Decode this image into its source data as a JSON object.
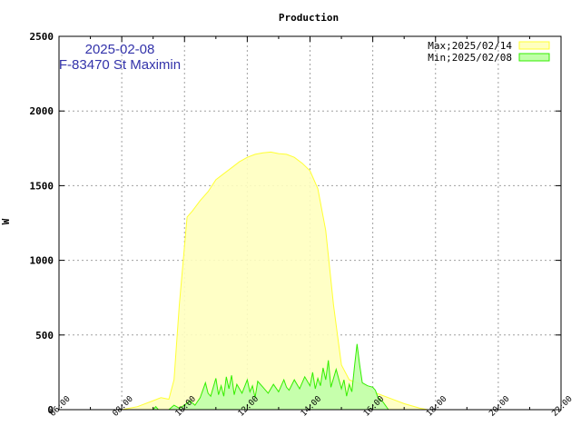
{
  "chart_data": {
    "type": "area",
    "title": "Production",
    "ylabel": "W",
    "annotation": {
      "date": "2025-02-08",
      "location": "F-83470 St Maximin"
    },
    "ylim": [
      0,
      2500
    ],
    "y_ticks": [
      0,
      500,
      1000,
      1500,
      2000,
      2500
    ],
    "xlim_hours": [
      6,
      22
    ],
    "x_ticks": [
      "06:00",
      "08:00",
      "10:00",
      "12:00",
      "14:00",
      "16:00",
      "18:00",
      "20:00",
      "22:00"
    ],
    "grid": true,
    "legend_position": "top-right",
    "series": [
      {
        "name": "Max;2025/02/14",
        "fill": "#ffffc0",
        "stroke": "#ffff33",
        "points": [
          [
            "08:00",
            0
          ],
          [
            "08:30",
            20
          ],
          [
            "09:00",
            60
          ],
          [
            "09:15",
            80
          ],
          [
            "09:30",
            70
          ],
          [
            "09:40",
            200
          ],
          [
            "09:50",
            700
          ],
          [
            "10:00",
            1100
          ],
          [
            "10:05",
            1290
          ],
          [
            "10:15",
            1330
          ],
          [
            "10:30",
            1400
          ],
          [
            "10:45",
            1460
          ],
          [
            "11:00",
            1540
          ],
          [
            "11:15",
            1580
          ],
          [
            "11:30",
            1620
          ],
          [
            "11:45",
            1660
          ],
          [
            "12:00",
            1690
          ],
          [
            "12:15",
            1710
          ],
          [
            "12:30",
            1720
          ],
          [
            "12:45",
            1725
          ],
          [
            "13:00",
            1715
          ],
          [
            "13:15",
            1710
          ],
          [
            "13:30",
            1690
          ],
          [
            "13:45",
            1650
          ],
          [
            "14:00",
            1600
          ],
          [
            "14:15",
            1480
          ],
          [
            "14:30",
            1200
          ],
          [
            "14:45",
            700
          ],
          [
            "15:00",
            300
          ],
          [
            "15:15",
            200
          ],
          [
            "15:30",
            180
          ],
          [
            "15:45",
            160
          ],
          [
            "16:00",
            120
          ],
          [
            "16:30",
            80
          ],
          [
            "17:00",
            40
          ],
          [
            "17:30",
            10
          ],
          [
            "17:45",
            0
          ]
        ]
      },
      {
        "name": "Min;2025/02/08",
        "fill": "#c0ffa8",
        "stroke": "#33ee00",
        "points": [
          [
            "09:00",
            0
          ],
          [
            "09:05",
            20
          ],
          [
            "09:10",
            0
          ],
          [
            "09:30",
            0
          ],
          [
            "09:40",
            30
          ],
          [
            "09:50",
            10
          ],
          [
            "10:00",
            30
          ],
          [
            "10:10",
            60
          ],
          [
            "10:20",
            30
          ],
          [
            "10:30",
            80
          ],
          [
            "10:40",
            180
          ],
          [
            "10:45",
            110
          ],
          [
            "10:50",
            90
          ],
          [
            "11:00",
            210
          ],
          [
            "11:05",
            100
          ],
          [
            "11:10",
            160
          ],
          [
            "11:15",
            90
          ],
          [
            "11:20",
            220
          ],
          [
            "11:25",
            140
          ],
          [
            "11:30",
            230
          ],
          [
            "11:35",
            100
          ],
          [
            "11:40",
            170
          ],
          [
            "11:50",
            110
          ],
          [
            "12:00",
            200
          ],
          [
            "12:05",
            120
          ],
          [
            "12:10",
            160
          ],
          [
            "12:15",
            80
          ],
          [
            "12:20",
            190
          ],
          [
            "12:30",
            150
          ],
          [
            "12:40",
            110
          ],
          [
            "12:50",
            170
          ],
          [
            "13:00",
            120
          ],
          [
            "13:10",
            200
          ],
          [
            "13:15",
            150
          ],
          [
            "13:20",
            130
          ],
          [
            "13:30",
            200
          ],
          [
            "13:40",
            140
          ],
          [
            "13:50",
            220
          ],
          [
            "14:00",
            160
          ],
          [
            "14:05",
            250
          ],
          [
            "14:10",
            140
          ],
          [
            "14:15",
            210
          ],
          [
            "14:20",
            160
          ],
          [
            "14:25",
            280
          ],
          [
            "14:30",
            200
          ],
          [
            "14:35",
            330
          ],
          [
            "14:40",
            150
          ],
          [
            "14:50",
            270
          ],
          [
            "15:00",
            140
          ],
          [
            "15:05",
            200
          ],
          [
            "15:10",
            90
          ],
          [
            "15:15",
            170
          ],
          [
            "15:20",
            120
          ],
          [
            "15:25",
            290
          ],
          [
            "15:30",
            440
          ],
          [
            "15:35",
            300
          ],
          [
            "15:40",
            180
          ],
          [
            "15:50",
            160
          ],
          [
            "16:00",
            150
          ],
          [
            "16:05",
            130
          ],
          [
            "16:10",
            80
          ],
          [
            "16:20",
            50
          ],
          [
            "16:30",
            0
          ]
        ]
      }
    ]
  }
}
